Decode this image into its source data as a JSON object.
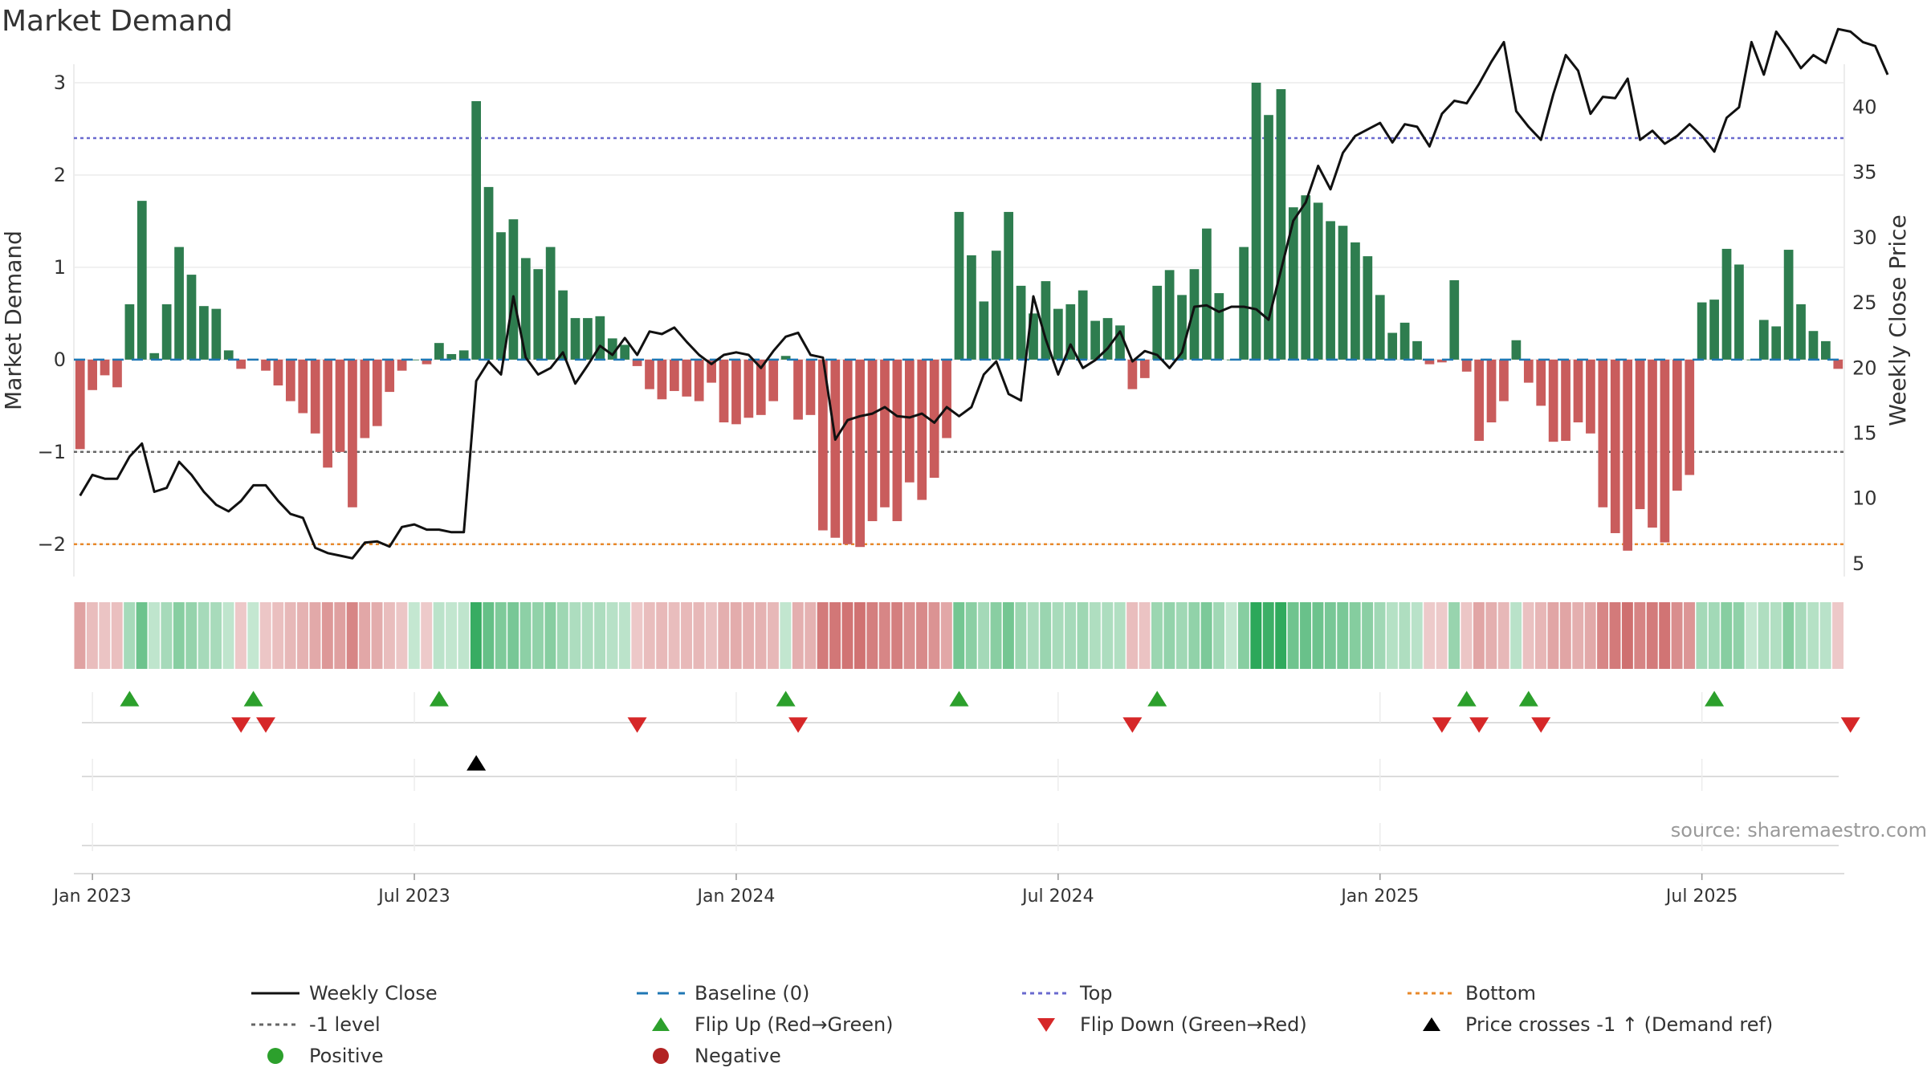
{
  "title": "Market Demand",
  "source": "source: sharemaestro.com",
  "colors": {
    "positive": "#2e7d4f",
    "negative": "#c95c5c",
    "price": "#111111",
    "top": "#6a6acf",
    "bottom": "#e8892b",
    "minus1": "#666666",
    "baseline": "#1f77b4",
    "flip_up": "#2ca02c",
    "flip_down": "#d62728",
    "cross": "#000000"
  },
  "chart_data": {
    "type": "bar",
    "title": "Market Demand",
    "ylabel_left": "Market Demand",
    "ylabel_right": "Weekly Close Price",
    "ylim_left": [
      -2.35,
      3.2
    ],
    "ylim_right": [
      4,
      43.3
    ],
    "yticks_left": [
      "−2",
      "−1",
      "0",
      "1",
      "2",
      "3"
    ],
    "yticks_right": [
      "5",
      "10",
      "15",
      "20",
      "25",
      "30",
      "35",
      "40"
    ],
    "xticks": [
      {
        "label": "Jan 2023",
        "week": 1.5
      },
      {
        "label": "Jul 2023",
        "week": 27.5
      },
      {
        "label": "Jan 2024",
        "week": 53.5
      },
      {
        "label": "Jul 2024",
        "week": 79.5
      },
      {
        "label": "Jan 2025",
        "week": 105.5
      },
      {
        "label": "Jul 2025",
        "week": 131.5
      }
    ],
    "reference_lines": {
      "top": 2.4,
      "minus1": -1,
      "bottom": -2,
      "baseline": 0
    },
    "demand": [
      -0.97,
      -0.33,
      -0.17,
      -0.3,
      0.6,
      1.72,
      0.07,
      0.6,
      1.22,
      0.92,
      0.58,
      0.55,
      0.1,
      -0.1,
      0,
      -0.12,
      -0.28,
      -0.45,
      -0.58,
      -0.8,
      -1.17,
      -1.0,
      -1.6,
      -0.85,
      -0.72,
      -0.35,
      -0.12,
      0,
      -0.05,
      0.18,
      0.06,
      0.1,
      2.8,
      1.87,
      1.38,
      1.52,
      1.1,
      0.98,
      1.22,
      0.75,
      0.45,
      0.45,
      0.47,
      0.23,
      0.16,
      -0.07,
      -0.32,
      -0.43,
      -0.34,
      -0.4,
      -0.45,
      -0.25,
      -0.68,
      -0.7,
      -0.63,
      -0.6,
      -0.45,
      0.04,
      -0.65,
      -0.6,
      -1.85,
      -1.93,
      -2.0,
      -2.03,
      -1.75,
      -1.6,
      -1.75,
      -1.33,
      -1.52,
      -1.28,
      -0.85,
      1.6,
      1.13,
      0.63,
      1.18,
      1.6,
      0.8,
      0.5,
      0.85,
      0.55,
      0.6,
      0.75,
      0.42,
      0.45,
      0.37,
      -0.32,
      -0.2,
      0.8,
      0.97,
      0.7,
      0.98,
      1.42,
      0.72,
      0,
      1.22,
      3.0,
      2.65,
      2.93,
      1.65,
      1.78,
      1.7,
      1.5,
      1.45,
      1.27,
      1.12,
      0.7,
      0.29,
      0.4,
      0.2,
      -0.05,
      -0.03,
      0.86,
      -0.13,
      -0.88,
      -0.68,
      -0.45,
      0.21,
      -0.25,
      -0.5,
      -0.89,
      -0.88,
      -0.68,
      -0.8,
      -1.6,
      -1.88,
      -2.07,
      -1.62,
      -1.82,
      -1.98,
      -1.42,
      -1.25,
      0.62,
      0.65,
      1.2,
      1.03,
      0,
      0.43,
      0.36,
      1.19,
      0.6,
      0.31,
      0.2,
      -0.1
    ],
    "weekly_close": [
      10.2,
      11.8,
      11.5,
      11.5,
      13.2,
      14.2,
      10.5,
      10.8,
      12.8,
      11.8,
      10.5,
      9.5,
      9,
      9.8,
      11,
      11,
      9.8,
      8.8,
      8.5,
      6.2,
      5.8,
      5.6,
      5.4,
      6.6,
      6.7,
      6.3,
      7.8,
      8,
      7.6,
      7.6,
      7.4,
      7.4,
      19,
      20.5,
      19.5,
      25.5,
      20.8,
      19.5,
      20,
      21.2,
      18.8,
      20.2,
      21.7,
      21,
      22.3,
      21,
      22.8,
      22.6,
      23.1,
      22,
      21,
      20.3,
      21,
      21.2,
      21,
      20,
      21.3,
      22.4,
      22.7,
      21,
      20.8,
      14.5,
      16,
      16.3,
      16.5,
      17,
      16.3,
      16.2,
      16.5,
      15.8,
      17,
      16.3,
      17,
      19.5,
      20.5,
      18,
      17.5,
      25.5,
      22.2,
      19.5,
      21.8,
      20,
      20.6,
      21.5,
      22.8,
      20.5,
      21.3,
      21,
      20,
      21.2,
      24.7,
      24.8,
      24.3,
      24.7,
      24.7,
      24.5,
      23.7,
      27.5,
      31.3,
      32.7,
      35.5,
      33.7,
      36.5,
      37.8,
      38.3,
      38.8,
      37.3,
      38.7,
      38.5,
      37,
      39.5,
      40.5,
      40.3,
      41.8,
      43.5,
      45,
      39.7,
      38.5,
      37.5,
      41,
      44,
      42.8,
      39.5,
      40.8,
      40.7,
      42.2,
      37.5,
      38.2,
      37.2,
      37.8,
      38.7,
      37.8,
      36.6,
      39.2,
      40,
      45,
      42.5,
      45.8,
      44.5,
      43,
      44,
      43.4,
      46,
      45.8,
      45,
      44.7,
      42.5
    ],
    "flip_up_weeks": [
      4,
      14,
      29,
      57,
      71,
      87,
      112,
      117,
      132
    ],
    "flip_down_weeks": [
      13,
      15,
      45,
      58,
      85,
      110,
      113,
      118,
      143
    ],
    "price_cross_weeks": [
      32
    ],
    "positive_weeks": [],
    "negative_weeks": [],
    "legend": [
      {
        "label": "Weekly Close",
        "marker": "line-solid",
        "color": "#111111"
      },
      {
        "label": "Baseline (0)",
        "marker": "line-dashed",
        "color": "#1f77b4"
      },
      {
        "label": "Top",
        "marker": "line-dotted",
        "color": "#6a6acf"
      },
      {
        "label": "Bottom",
        "marker": "line-dotted",
        "color": "#e8892b"
      },
      {
        "label": "-1 level",
        "marker": "line-dotted",
        "color": "#666666"
      },
      {
        "label": "Flip Up (Red→Green)",
        "marker": "triangle-up",
        "color": "#2ca02c"
      },
      {
        "label": "Flip Down (Green→Red)",
        "marker": "triangle-down",
        "color": "#d62728"
      },
      {
        "label": "Price crosses -1 ↑ (Demand ref)",
        "marker": "triangle-up",
        "color": "#000000"
      },
      {
        "label": "Positive",
        "marker": "circle",
        "color": "#2ca02c"
      },
      {
        "label": "Negative",
        "marker": "circle",
        "color": "#b22222"
      }
    ]
  }
}
